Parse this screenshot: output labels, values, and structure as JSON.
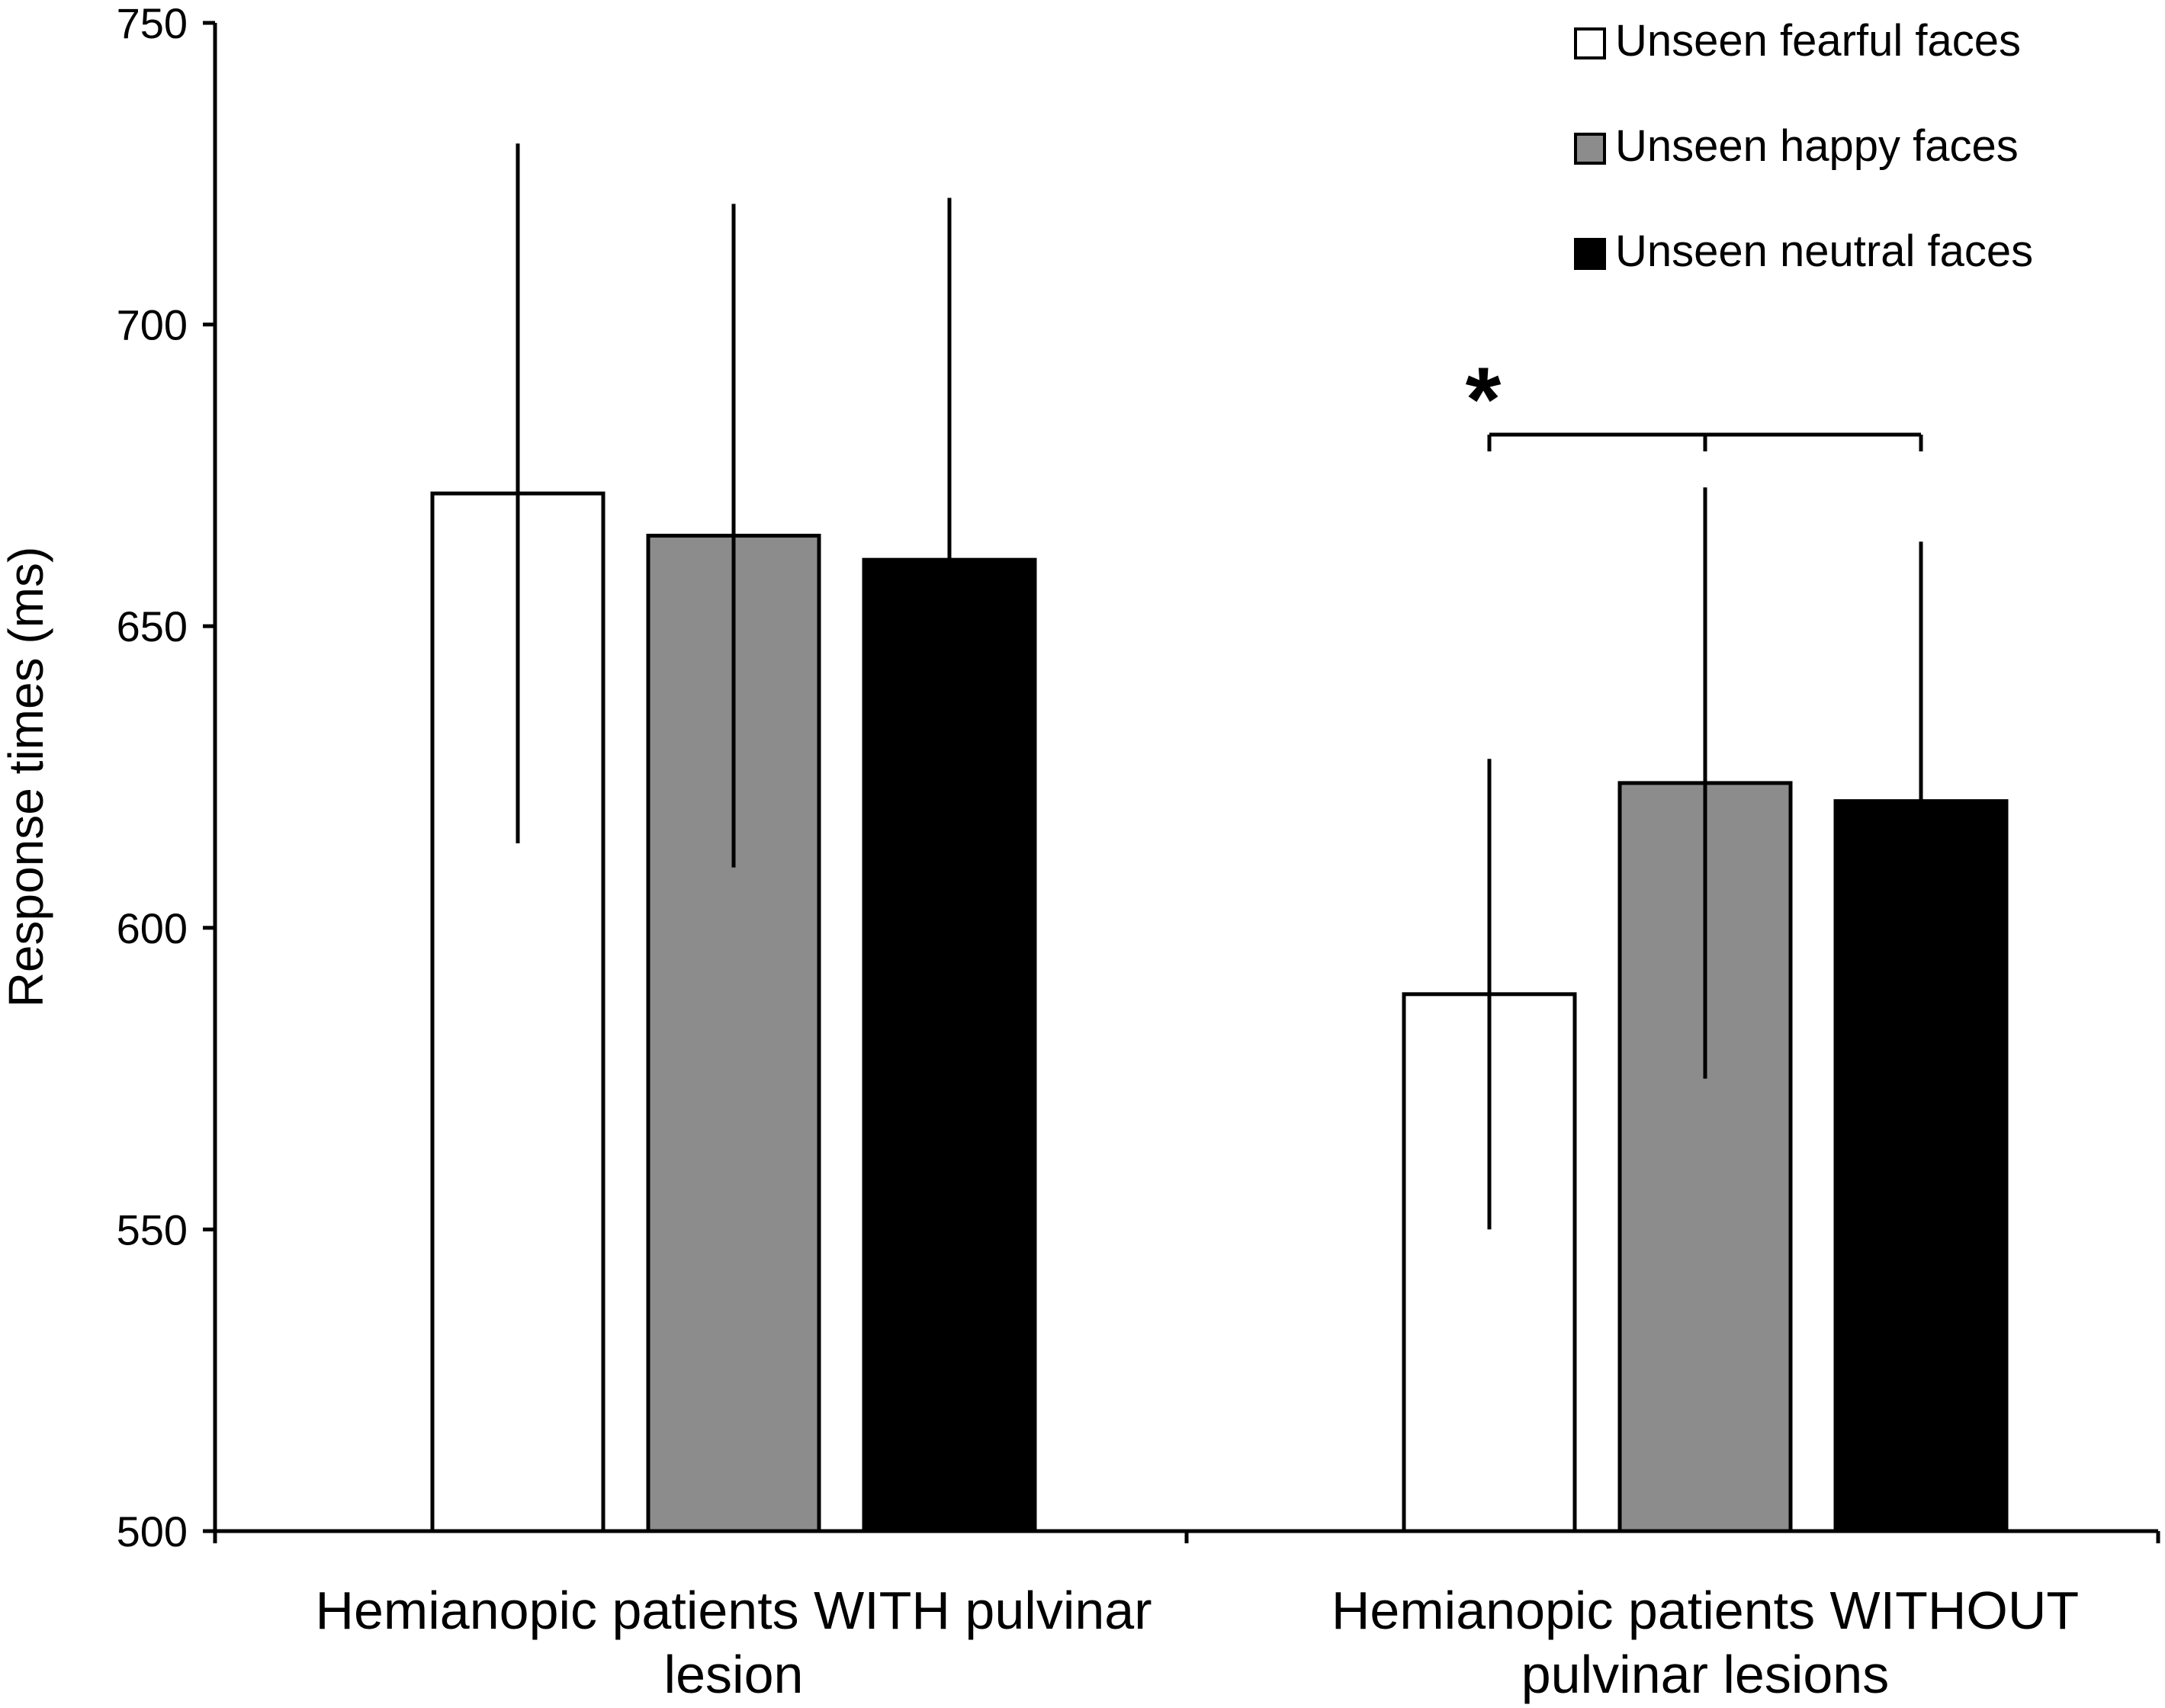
{
  "chart_data": {
    "type": "bar",
    "ylabel": "Response times (ms)",
    "ylim": [
      500,
      750
    ],
    "yticks": [
      "500",
      "550",
      "600",
      "650",
      "700",
      "750"
    ],
    "categories": [
      [
        "Hemianopic patients WITH pulvinar",
        "lesion"
      ],
      [
        "Hemianopic patients WITHOUT",
        "pulvinar lesions"
      ]
    ],
    "series": [
      {
        "name": "Unseen fearful faces",
        "color": "#ffffff",
        "values": [
          672,
          589
        ],
        "err_low": [
          614,
          550
        ],
        "err_high": [
          730,
          628
        ]
      },
      {
        "name": "Unseen happy faces",
        "color": "#8c8c8c",
        "values": [
          665,
          624
        ],
        "err_low": [
          610,
          575
        ],
        "err_high": [
          720,
          673
        ]
      },
      {
        "name": "Unseen neutral faces",
        "color": "#000000",
        "values": [
          661,
          621
        ],
        "err_low": [
          661,
          621
        ],
        "err_high": [
          721,
          664
        ]
      }
    ],
    "legend_position": "top-right",
    "grid": false,
    "annotation": {
      "text": "*",
      "category": 1,
      "series_span": [
        0,
        2
      ]
    }
  }
}
